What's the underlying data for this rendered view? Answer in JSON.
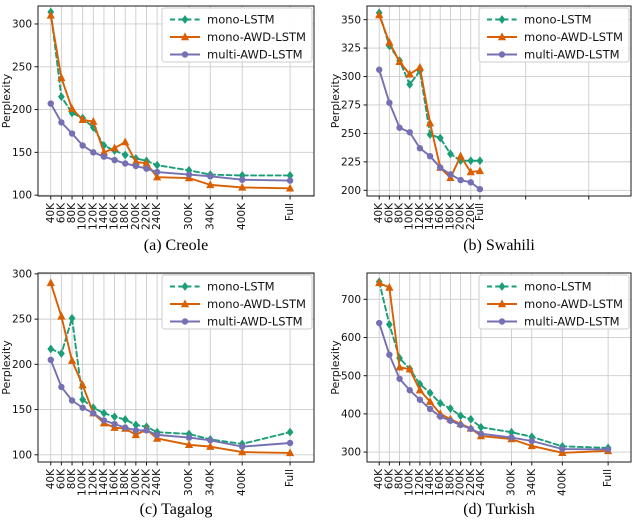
{
  "figure_type": "2x2 line chart grid, perplexity vs training corpus size",
  "colors": {
    "mono_lstm": "#1b9e77",
    "mono_awd_lstm": "#d95f02",
    "multi_awd_lstm": "#7570b3",
    "grid": "#cccccc",
    "axis": "#1a1a1a",
    "legend_border": "#cccccc",
    "background": "#ffffff"
  },
  "chart_data": [
    {
      "type": "line",
      "caption": "(a) Creole",
      "ylabel": "Perplexity",
      "yticks": [
        100,
        150,
        200,
        250,
        300
      ],
      "ylim": [
        99,
        321
      ],
      "xlim": [
        16,
        535
      ],
      "legend_position": "top-right",
      "grid": true,
      "xticks": [
        {
          "v": 40,
          "label": "40K"
        },
        {
          "v": 60,
          "label": "60K"
        },
        {
          "v": 80,
          "label": "80K"
        },
        {
          "v": 100,
          "label": "100K"
        },
        {
          "v": 120,
          "label": "120K"
        },
        {
          "v": 140,
          "label": "140K"
        },
        {
          "v": 160,
          "label": "160K"
        },
        {
          "v": 180,
          "label": "180K"
        },
        {
          "v": 200,
          "label": "200K"
        },
        {
          "v": 220,
          "label": "220K"
        },
        {
          "v": 240,
          "label": "240K"
        },
        {
          "v": 300,
          "label": "300K"
        },
        {
          "v": 340,
          "label": "340K"
        },
        {
          "v": 400,
          "label": "400K"
        },
        {
          "v": 490,
          "label": "Full"
        }
      ],
      "extra_grid_x": [],
      "series": [
        {
          "name": "mono-LSTM",
          "color": "#1b9e77",
          "marker": "diamond",
          "line": "dashed",
          "values": [
            314,
            215,
            196,
            190,
            179,
            158,
            152,
            147,
            143,
            140,
            135,
            129,
            124,
            123,
            123
          ]
        },
        {
          "name": "mono-AWD-LSTM",
          "color": "#d95f02",
          "marker": "triangle",
          "line": "solid",
          "values": [
            310,
            237,
            201,
            188,
            186,
            150,
            155,
            162,
            139,
            137,
            121,
            120,
            112,
            109,
            108
          ]
        },
        {
          "name": "multi-AWD-LSTM",
          "color": "#7570b3",
          "marker": "circle",
          "line": "solid",
          "values": [
            207,
            185,
            172,
            158,
            150,
            145,
            141,
            137,
            134,
            131,
            127,
            124,
            122,
            118,
            117
          ]
        }
      ]
    },
    {
      "type": "line",
      "caption": "(b) Swahili",
      "ylabel": "Perplexity",
      "yticks": [
        200,
        225,
        250,
        275,
        300,
        325,
        350
      ],
      "ylim": [
        195,
        362
      ],
      "xlim": [
        16,
        535
      ],
      "legend_position": "top-right",
      "grid": true,
      "xticks": [
        {
          "v": 40,
          "label": "40K"
        },
        {
          "v": 60,
          "label": "60K"
        },
        {
          "v": 80,
          "label": "80K"
        },
        {
          "v": 100,
          "label": "100K"
        },
        {
          "v": 120,
          "label": "120K"
        },
        {
          "v": 140,
          "label": "140K"
        },
        {
          "v": 160,
          "label": "160K"
        },
        {
          "v": 180,
          "label": "180K"
        },
        {
          "v": 200,
          "label": "200K"
        },
        {
          "v": 220,
          "label": "220K"
        },
        {
          "v": 238,
          "label": "Full"
        }
      ],
      "extra_grid_x": [
        328,
        452
      ],
      "series": [
        {
          "name": "mono-LSTM",
          "color": "#1b9e77",
          "marker": "diamond",
          "line": "dashed",
          "values": [
            356,
            327,
            314,
            293,
            305,
            249,
            246,
            232,
            226,
            226,
            226
          ]
        },
        {
          "name": "mono-AWD-LSTM",
          "color": "#d95f02",
          "marker": "triangle",
          "line": "solid",
          "values": [
            354,
            330,
            313,
            302,
            308,
            259,
            220,
            211,
            230,
            216,
            217
          ]
        },
        {
          "name": "multi-AWD-LSTM",
          "color": "#7570b3",
          "marker": "circle",
          "line": "solid",
          "values": [
            306,
            277,
            255,
            251,
            237,
            230,
            220,
            214,
            209,
            207,
            201
          ]
        }
      ]
    },
    {
      "type": "line",
      "caption": "(c) Tagalog",
      "ylabel": "Perplexity",
      "yticks": [
        100,
        150,
        200,
        250,
        300
      ],
      "ylim": [
        92,
        301
      ],
      "xlim": [
        16,
        535
      ],
      "legend_position": "top-right",
      "grid": true,
      "xticks": [
        {
          "v": 40,
          "label": "40K"
        },
        {
          "v": 60,
          "label": "60K"
        },
        {
          "v": 80,
          "label": "80K"
        },
        {
          "v": 100,
          "label": "100K"
        },
        {
          "v": 120,
          "label": "120K"
        },
        {
          "v": 140,
          "label": "140K"
        },
        {
          "v": 160,
          "label": "160K"
        },
        {
          "v": 180,
          "label": "180K"
        },
        {
          "v": 200,
          "label": "200K"
        },
        {
          "v": 220,
          "label": "220K"
        },
        {
          "v": 240,
          "label": "240K"
        },
        {
          "v": 300,
          "label": "300K"
        },
        {
          "v": 340,
          "label": "340K"
        },
        {
          "v": 400,
          "label": "400K"
        },
        {
          "v": 490,
          "label": "Full"
        }
      ],
      "extra_grid_x": [],
      "series": [
        {
          "name": "mono-LSTM",
          "color": "#1b9e77",
          "marker": "diamond",
          "line": "dashed",
          "values": [
            217,
            212,
            251,
            161,
            152,
            146,
            142,
            139,
            133,
            131,
            125,
            123,
            117,
            112,
            125
          ]
        },
        {
          "name": "mono-AWD-LSTM",
          "color": "#d95f02",
          "marker": "triangle",
          "line": "solid",
          "values": [
            290,
            253,
            204,
            177,
            146,
            135,
            130,
            129,
            122,
            128,
            118,
            111,
            109,
            103,
            102
          ]
        },
        {
          "name": "multi-AWD-LSTM",
          "color": "#7570b3",
          "marker": "circle",
          "line": "solid",
          "values": [
            205,
            175,
            160,
            152,
            146,
            138,
            134,
            130,
            127,
            127,
            122,
            119,
            116,
            109,
            113
          ]
        }
      ]
    },
    {
      "type": "line",
      "caption": "(d) Turkish",
      "ylabel": "Perplexity",
      "yticks": [
        300,
        400,
        500,
        600,
        700
      ],
      "ylim": [
        274,
        769
      ],
      "xlim": [
        16,
        535
      ],
      "legend_position": "top-right",
      "grid": true,
      "xticks": [
        {
          "v": 40,
          "label": "40K"
        },
        {
          "v": 60,
          "label": "60K"
        },
        {
          "v": 80,
          "label": "80K"
        },
        {
          "v": 100,
          "label": "100K"
        },
        {
          "v": 120,
          "label": "120K"
        },
        {
          "v": 140,
          "label": "140K"
        },
        {
          "v": 160,
          "label": "160K"
        },
        {
          "v": 180,
          "label": "180K"
        },
        {
          "v": 200,
          "label": "200K"
        },
        {
          "v": 220,
          "label": "220K"
        },
        {
          "v": 240,
          "label": "240K"
        },
        {
          "v": 300,
          "label": "300K"
        },
        {
          "v": 340,
          "label": "340K"
        },
        {
          "v": 400,
          "label": "400K"
        },
        {
          "v": 490,
          "label": "Full"
        }
      ],
      "extra_grid_x": [],
      "series": [
        {
          "name": "mono-LSTM",
          "color": "#1b9e77",
          "marker": "diamond",
          "line": "dashed",
          "values": [
            746,
            634,
            546,
            518,
            478,
            455,
            428,
            414,
            395,
            386,
            365,
            352,
            340,
            315,
            311
          ]
        },
        {
          "name": "mono-AWD-LSTM",
          "color": "#d95f02",
          "marker": "triangle",
          "line": "solid",
          "values": [
            743,
            731,
            522,
            517,
            462,
            432,
            400,
            386,
            374,
            362,
            342,
            334,
            316,
            298,
            303
          ]
        },
        {
          "name": "multi-AWD-LSTM",
          "color": "#7570b3",
          "marker": "circle",
          "line": "solid",
          "values": [
            638,
            555,
            492,
            462,
            437,
            413,
            393,
            382,
            371,
            361,
            348,
            338,
            329,
            308,
            307
          ]
        }
      ]
    }
  ]
}
